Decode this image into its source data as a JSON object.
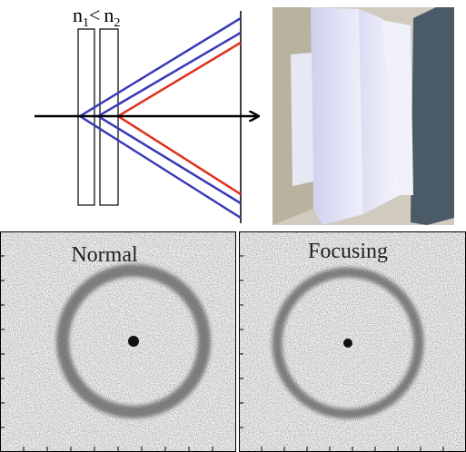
{
  "diagram": {
    "index_label": {
      "base1": "n",
      "sub1": "1",
      "operator": "<",
      "base2": "n",
      "sub2": "2"
    }
  },
  "panels": {
    "left": {
      "title": "Normal"
    },
    "right": {
      "title": "Focusing"
    }
  }
}
